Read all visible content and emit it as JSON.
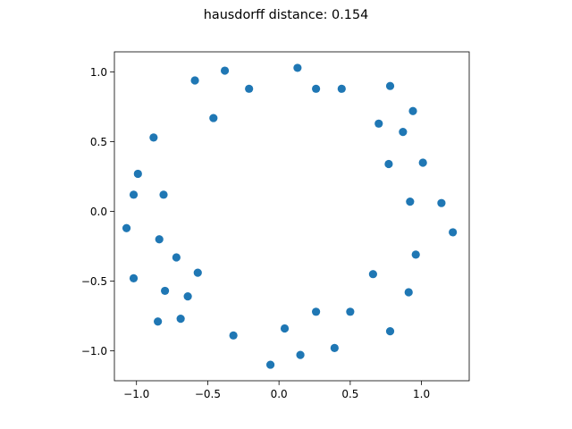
{
  "chart_data": {
    "type": "scatter",
    "title": "hausdorff distance: 0.154",
    "xlabel": "",
    "ylabel": "",
    "xlim": [
      -1.155,
      1.335
    ],
    "ylim": [
      -1.215,
      1.145
    ],
    "xticks": [
      -1.0,
      -0.5,
      0.0,
      0.5,
      1.0
    ],
    "xtick_labels": [
      "−1.0",
      "−0.5",
      "0.0",
      "0.5",
      "1.0"
    ],
    "yticks": [
      -1.0,
      -0.5,
      0.0,
      0.5,
      1.0
    ],
    "ytick_labels": [
      "−1.0",
      "−0.5",
      "0.0",
      "0.5",
      "1.0"
    ],
    "grid": false,
    "legend": "none",
    "aspect": "equal",
    "series": [
      {
        "color": "#1f77b4",
        "points": [
          [
            0.13,
            1.03
          ],
          [
            -0.38,
            1.01
          ],
          [
            -0.59,
            0.94
          ],
          [
            -0.21,
            0.88
          ],
          [
            0.26,
            0.88
          ],
          [
            0.44,
            0.88
          ],
          [
            0.78,
            0.9
          ],
          [
            0.94,
            0.72
          ],
          [
            -0.46,
            0.67
          ],
          [
            0.7,
            0.63
          ],
          [
            0.87,
            0.57
          ],
          [
            -0.88,
            0.53
          ],
          [
            0.77,
            0.34
          ],
          [
            1.01,
            0.35
          ],
          [
            -0.99,
            0.27
          ],
          [
            -1.02,
            0.12
          ],
          [
            -0.81,
            0.12
          ],
          [
            0.92,
            0.07
          ],
          [
            1.14,
            0.06
          ],
          [
            -1.07,
            -0.12
          ],
          [
            1.22,
            -0.15
          ],
          [
            -0.84,
            -0.2
          ],
          [
            -0.72,
            -0.33
          ],
          [
            0.96,
            -0.31
          ],
          [
            -0.57,
            -0.44
          ],
          [
            0.66,
            -0.45
          ],
          [
            -1.02,
            -0.48
          ],
          [
            -0.8,
            -0.57
          ],
          [
            0.91,
            -0.58
          ],
          [
            -0.64,
            -0.61
          ],
          [
            0.26,
            -0.72
          ],
          [
            0.5,
            -0.72
          ],
          [
            -0.69,
            -0.77
          ],
          [
            -0.85,
            -0.79
          ],
          [
            0.04,
            -0.84
          ],
          [
            0.78,
            -0.86
          ],
          [
            -0.32,
            -0.89
          ],
          [
            0.39,
            -0.98
          ],
          [
            0.15,
            -1.03
          ],
          [
            -0.06,
            -1.1
          ]
        ]
      }
    ]
  }
}
